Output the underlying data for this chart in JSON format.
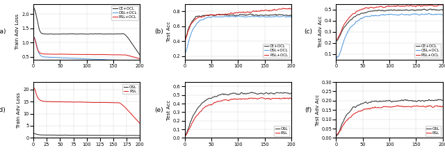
{
  "fig_width": 6.4,
  "fig_height": 2.23,
  "dpi": 100,
  "colors": {
    "CE_OCL": "#333333",
    "OSL_OCL": "#5599dd",
    "RSL_OCL": "#dd2222",
    "OSL": "#333333",
    "RSL": "#dd2222"
  },
  "panel_labels": [
    "(a)",
    "(b)",
    "(c)",
    "(d)",
    "(e)",
    "(f)"
  ],
  "top_row": {
    "a": {
      "ylabel": "Train Adv Loss",
      "xlim": [
        0,
        200
      ],
      "ylim": [
        0.4,
        2.35
      ],
      "yticks": [
        0.5,
        1.0,
        1.5,
        2.0
      ],
      "xticks": [
        0,
        50,
        100,
        150,
        200
      ]
    },
    "b": {
      "ylabel": "Test Acc",
      "xlim": [
        0,
        200
      ],
      "ylim": [
        0.15,
        0.9
      ],
      "yticks": [
        0.2,
        0.4,
        0.6,
        0.8
      ],
      "xticks": [
        0,
        50,
        100,
        150,
        200
      ]
    },
    "c": {
      "ylabel": "Test Adv Acc",
      "xlim": [
        0,
        200
      ],
      "ylim": [
        0.05,
        0.55
      ],
      "yticks": [
        0.1,
        0.2,
        0.3,
        0.4,
        0.5
      ],
      "xticks": [
        0,
        50,
        100,
        150,
        200
      ]
    }
  },
  "bot_row": {
    "d": {
      "ylabel": "Train Adv Loss",
      "xlim": [
        0,
        200
      ],
      "ylim": [
        0,
        23
      ],
      "yticks": [
        0,
        5,
        10,
        15,
        20
      ],
      "xticks": [
        0,
        25,
        50,
        75,
        100,
        125,
        150,
        175,
        200
      ]
    },
    "e": {
      "ylabel": "Test Acc",
      "xlim": [
        0,
        200
      ],
      "ylim": [
        0.0,
        0.65
      ],
      "yticks": [
        0.0,
        0.1,
        0.2,
        0.3,
        0.4,
        0.5,
        0.6
      ],
      "xticks": [
        0,
        50,
        100,
        150,
        200
      ]
    },
    "f": {
      "ylabel": "Test Adv Acc",
      "xlim": [
        0,
        200
      ],
      "ylim": [
        0.0,
        0.3
      ],
      "yticks": [
        0.0,
        0.05,
        0.1,
        0.15,
        0.2,
        0.25,
        0.3
      ],
      "xticks": [
        0,
        50,
        100,
        150,
        200
      ]
    }
  },
  "seed": 42
}
